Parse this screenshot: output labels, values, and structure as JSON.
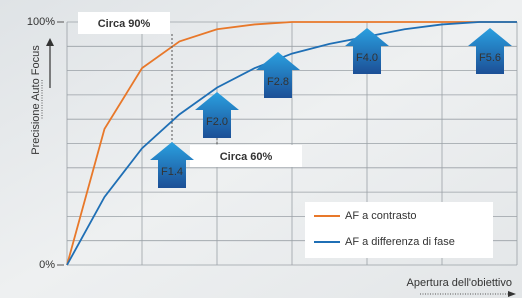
{
  "chart_data": {
    "type": "line",
    "y_label": "Precisione Auto Focus",
    "x_label": "Apertura dell'obiettivo",
    "x": [
      0,
      0.5,
      1,
      1.5,
      2,
      2.5,
      3,
      3.5,
      4,
      4.5,
      5,
      5.5,
      6
    ],
    "xlim": [
      0,
      6
    ],
    "ylim": [
      0,
      100
    ],
    "yticks": [
      {
        "value": 0,
        "label": "0%"
      },
      {
        "value": 100,
        "label": "100%"
      }
    ],
    "grid": true,
    "series": [
      {
        "name": "AF a contrasto",
        "color": "#e8782a",
        "values": [
          0,
          56,
          81,
          92,
          97,
          99,
          100,
          100,
          100,
          100,
          100,
          100,
          100
        ]
      },
      {
        "name": "AF a differenza di fase",
        "color": "#1f6fb5",
        "values": [
          0,
          28,
          48,
          62,
          73,
          81,
          87,
          91,
          94,
          97,
          99,
          100,
          100
        ]
      }
    ],
    "annotations": [
      "Circa 90%",
      "Circa 60%"
    ],
    "apertures": [
      "F1.4",
      "F2.0",
      "F2.8",
      "F4.0",
      "F5.6"
    ]
  }
}
